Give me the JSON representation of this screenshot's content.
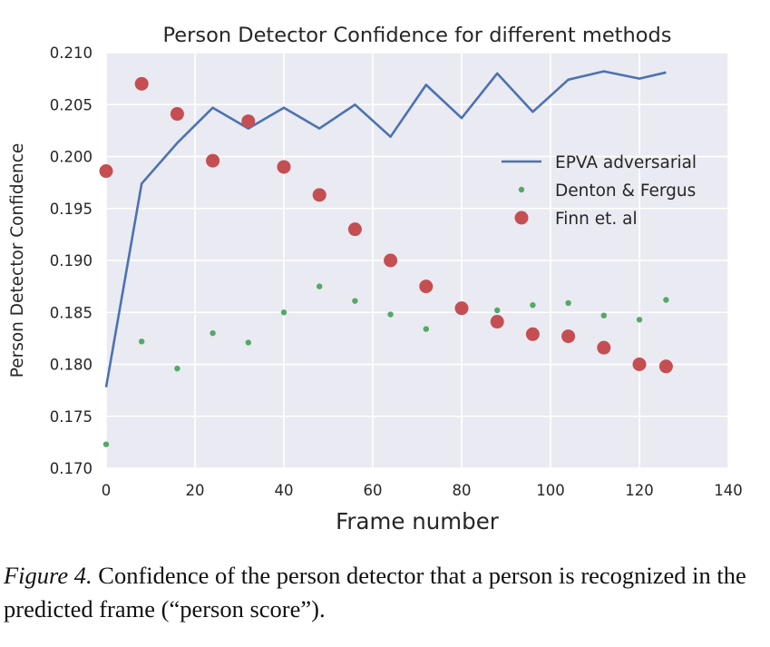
{
  "chart_data": {
    "type": "line",
    "title": "Person Detector Confidence for different methods",
    "xlabel": "Frame number",
    "ylabel": "Person Detector Confidence",
    "xlim": [
      0,
      140
    ],
    "ylim": [
      0.17,
      0.21
    ],
    "xticks": [
      "0",
      "20",
      "40",
      "60",
      "80",
      "100",
      "120",
      "140"
    ],
    "yticks": [
      "0.210",
      "0.205",
      "0.200",
      "0.195",
      "0.190",
      "0.185",
      "0.180",
      "0.175",
      "0.170"
    ],
    "grid": true,
    "legend_position": "right",
    "background_color": "#eaeaf2",
    "series": [
      {
        "name": "EPVA adversarial",
        "kind": "line",
        "color": "#4c72b0",
        "x": [
          0,
          8,
          16,
          24,
          32,
          40,
          48,
          56,
          64,
          72,
          80,
          88,
          96,
          104,
          112,
          120,
          126
        ],
        "y": [
          0.1778,
          0.1974,
          0.2013,
          0.2047,
          0.2027,
          0.2047,
          0.2027,
          0.205,
          0.2019,
          0.2069,
          0.2037,
          0.208,
          0.2043,
          0.2074,
          0.2082,
          0.2075,
          0.2081
        ]
      },
      {
        "name": "Denton & Fergus",
        "kind": "scatter-small",
        "color": "#55a868",
        "x": [
          0,
          8,
          16,
          24,
          32,
          40,
          48,
          56,
          64,
          72,
          80,
          88,
          96,
          104,
          112,
          120,
          126
        ],
        "y": [
          0.1723,
          0.1822,
          0.1796,
          0.183,
          0.1821,
          0.185,
          0.1875,
          0.1861,
          0.1848,
          0.1834,
          0.1855,
          0.1852,
          0.1857,
          0.1859,
          0.1847,
          0.1843,
          0.1862
        ]
      },
      {
        "name": "Finn et. al",
        "kind": "scatter-large",
        "color": "#c44e52",
        "x": [
          0,
          8,
          16,
          24,
          32,
          40,
          48,
          56,
          64,
          72,
          80,
          88,
          96,
          104,
          112,
          120,
          126
        ],
        "y": [
          0.1986,
          0.207,
          0.2041,
          0.1996,
          0.2034,
          0.199,
          0.1963,
          0.193,
          0.19,
          0.1875,
          0.1854,
          0.1841,
          0.1829,
          0.1827,
          0.1816,
          0.18,
          0.1798
        ]
      }
    ]
  },
  "caption": {
    "label": "Figure 4.",
    "text": " Confidence of the person detector that a person is recognized in the predicted frame (“person score”)."
  }
}
